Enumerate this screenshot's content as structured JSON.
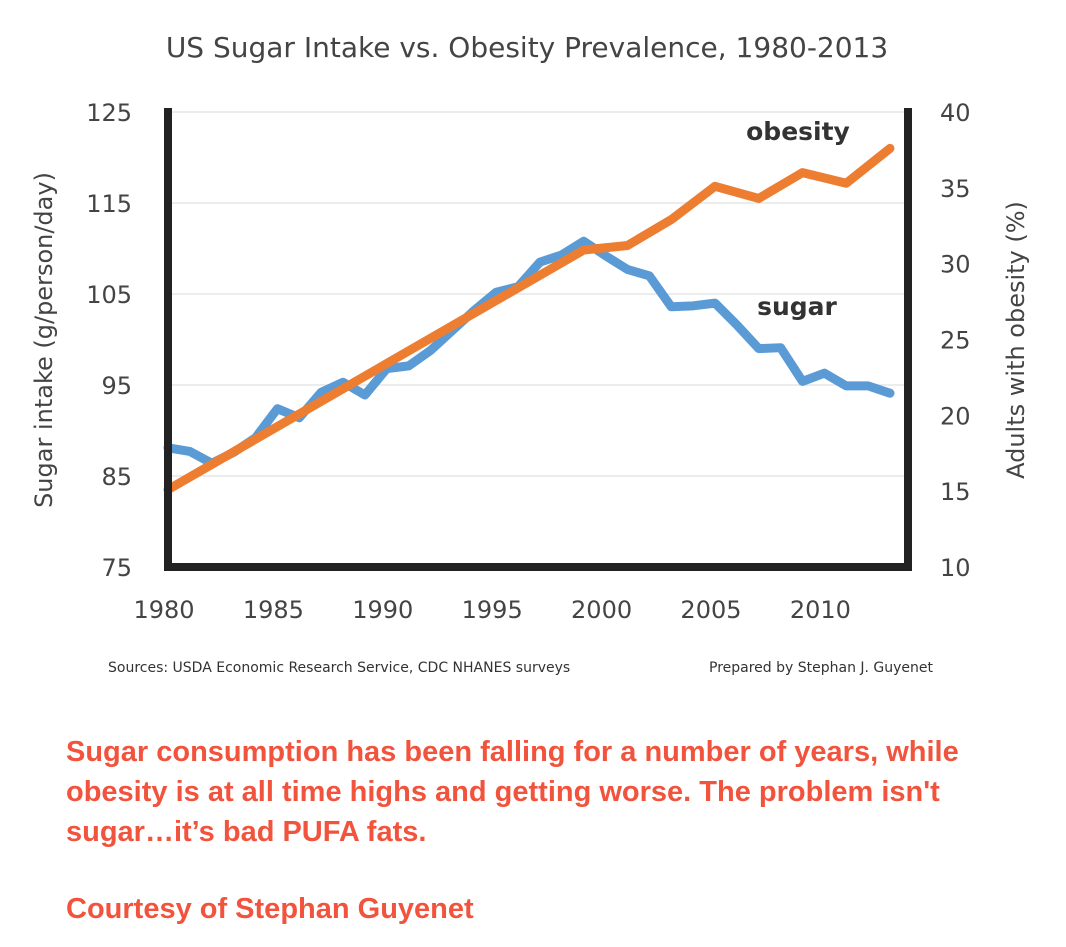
{
  "chart_data": {
    "type": "line",
    "title": "US Sugar Intake vs. Obesity Prevalence, 1980-2013",
    "xlabel": "",
    "ylabel": "Sugar intake (g/person/day)",
    "y2label": "Adults with obesity (%)",
    "xlim": [
      1980,
      2013
    ],
    "ylim": [
      75,
      125
    ],
    "y2lim": [
      10,
      40
    ],
    "xticks": [
      "1980",
      "1985",
      "1990",
      "1995",
      "2000",
      "2005",
      "2010"
    ],
    "yticks": [
      "75",
      "85",
      "95",
      "105",
      "115",
      "125"
    ],
    "y2ticks": [
      "10",
      "15",
      "20",
      "25",
      "30",
      "35",
      "40"
    ],
    "grid": true,
    "series": [
      {
        "name": "sugar",
        "axis": "left",
        "color": "#5b9bd5",
        "x": [
          1980,
          1981,
          1982,
          1983,
          1984,
          1985,
          1986,
          1987,
          1988,
          1989,
          1990,
          1991,
          1992,
          1993,
          1994,
          1995,
          1996,
          1997,
          1998,
          1999,
          2000,
          2001,
          2002,
          2003,
          2004,
          2005,
          2006,
          2007,
          2008,
          2009,
          2010,
          2011,
          2012,
          2013
        ],
        "values": [
          88.1,
          87.7,
          86.4,
          87.6,
          89.2,
          92.4,
          91.4,
          94.2,
          95.3,
          93.9,
          96.8,
          97.1,
          98.8,
          101.0,
          103.2,
          105.2,
          105.8,
          108.5,
          109.3,
          110.8,
          109.2,
          107.7,
          107.0,
          103.6,
          103.7,
          104.0,
          101.6,
          99.0,
          99.1,
          95.4,
          96.3,
          94.9,
          94.9,
          94.1
        ]
      },
      {
        "name": "obesity",
        "axis": "right",
        "color": "#ed7d31",
        "x": [
          1980,
          1999,
          2001,
          2003,
          2005,
          2007,
          2009,
          2011,
          2013
        ],
        "values": [
          15.1,
          30.9,
          31.2,
          32.9,
          35.1,
          34.3,
          36.0,
          35.3,
          37.6
        ]
      }
    ],
    "annotations": [
      "obesity",
      "sugar"
    ],
    "sources": "Sources: USDA Economic Research Service, CDC NHANES surveys",
    "prepared_by": "Prepared by Stephan J. Guyenet"
  },
  "caption": {
    "lines": [
      "Sugar consumption has been falling for a number of years, while",
      "obesity is at all time highs and getting worse. The problem isn't",
      "sugar…it’s bad PUFA fats."
    ],
    "credit": "Courtesy of Stephan Guyenet"
  }
}
